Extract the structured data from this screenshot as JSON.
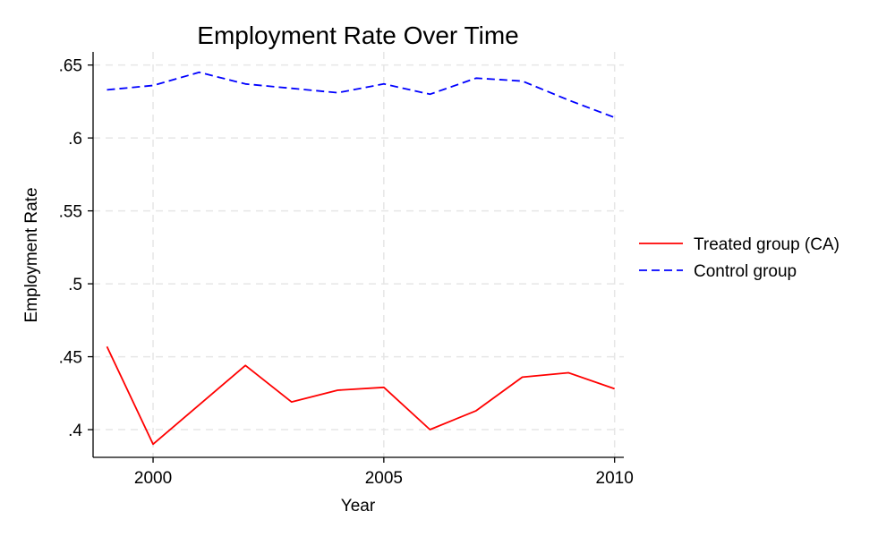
{
  "chart_data": {
    "type": "line",
    "title": "Employment Rate Over Time",
    "xlabel": "Year",
    "ylabel": "Employment Rate",
    "x": [
      1999,
      2000,
      2001,
      2002,
      2003,
      2004,
      2005,
      2006,
      2007,
      2008,
      2009,
      2010
    ],
    "series": [
      {
        "name": "Treated group (CA)",
        "color": "#ff0000",
        "dash": "solid",
        "values": [
          0.457,
          0.39,
          0.417,
          0.444,
          0.419,
          0.427,
          0.429,
          0.4,
          0.413,
          0.436,
          0.439,
          0.428
        ]
      },
      {
        "name": "Control group",
        "color": "#0000ff",
        "dash": "dashed",
        "values": [
          0.633,
          0.636,
          0.645,
          0.637,
          0.634,
          0.631,
          0.637,
          0.63,
          0.641,
          0.639,
          0.626,
          0.614
        ]
      }
    ],
    "xlim": [
      1998.7,
      2010.2
    ],
    "ylim": [
      0.381,
      0.659
    ],
    "xticks": [
      2000,
      2005,
      2010
    ],
    "xtick_labels": [
      "2000",
      "2005",
      "2010"
    ],
    "yticks": [
      0.4,
      0.45,
      0.5,
      0.55,
      0.6,
      0.65
    ],
    "ytick_labels": [
      ".4",
      ".45",
      ".5",
      ".55",
      ".6",
      ".65"
    ],
    "grid": true,
    "legend_position": "right"
  }
}
